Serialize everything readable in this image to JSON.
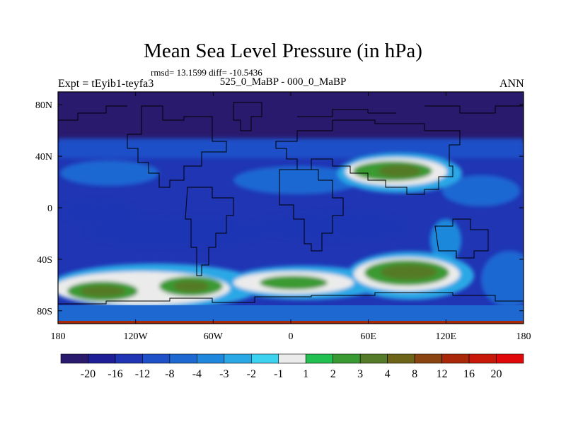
{
  "chart_data": {
    "type": "heatmap",
    "title": "Mean Sea Level Pressure (in hPa)",
    "stats": "rmsd= 13.1599 diff= -10.5436",
    "left_label": "Expt = tEyib1-teyfa3",
    "subtitle": "525_0_MaBP - 000_0_MaBP",
    "right_label": "ANN",
    "x_axis": {
      "range": [
        -180,
        180
      ],
      "ticks": [
        -180,
        -120,
        -60,
        0,
        60,
        120,
        180
      ],
      "tick_labels": [
        "180",
        "120W",
        "60W",
        "0",
        "60E",
        "120E",
        "180"
      ]
    },
    "y_axis": {
      "range": [
        -90,
        90
      ],
      "ticks": [
        80,
        40,
        0,
        -40,
        -80
      ],
      "tick_labels": [
        "80N",
        "40N",
        "0",
        "40S",
        "80S"
      ]
    },
    "levels": [
      "-20",
      "-16",
      "-12",
      "-8",
      "-4",
      "-3",
      "-2",
      "-1",
      "1",
      "2",
      "3",
      "4",
      "8",
      "12",
      "16",
      "20"
    ],
    "colors": [
      "#2a1a6e",
      "#1e1e96",
      "#1f35b4",
      "#1e50c8",
      "#1e68d2",
      "#1f88dc",
      "#2aa8e6",
      "#3cd2f0",
      "#ebebeb",
      "#22c050",
      "#3a9a32",
      "#557a28",
      "#6e6418",
      "#8a4410",
      "#a82808",
      "#c81808",
      "#e00808"
    ],
    "features": [
      {
        "name": "polar-low-north",
        "lon": [
          -180,
          180
        ],
        "lat": [
          56,
          90
        ],
        "level_bin": 0
      },
      {
        "name": "east-asia-high-core",
        "lon": 60,
        "lat": 36,
        "level_bin": 11
      },
      {
        "name": "southern-ocean-high-core",
        "lon": 90,
        "lat": -52,
        "level_bin": 11
      },
      {
        "name": "southern-ocean-high-west",
        "lon": -150,
        "lat": -66,
        "level_bin": 11
      },
      {
        "name": "southern-ocean-high-southamerica",
        "lon": -75,
        "lat": -62,
        "level_bin": 11
      },
      {
        "name": "southern-ocean-high-atlantic",
        "lon": -5,
        "lat": -58,
        "level_bin": 10
      }
    ]
  }
}
